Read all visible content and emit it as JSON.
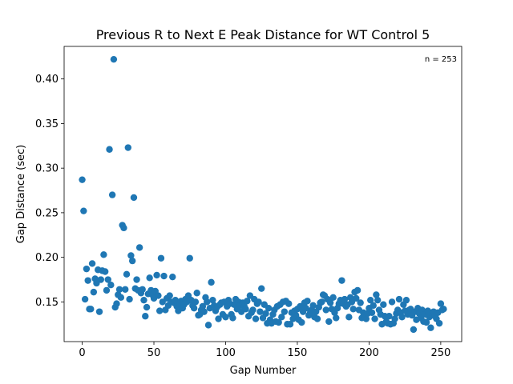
{
  "chart_data": {
    "type": "scatter",
    "title": "Previous R to Next E Peak Distance for WT Control 5",
    "xlabel": "Gap Number",
    "ylabel": "Gap Distance (sec)",
    "annotation": "n = 253",
    "annotation_position": "top-right",
    "xlim": [
      -12.6,
      264.6
    ],
    "ylim": [
      0.1055,
      0.4365
    ],
    "xticks": [
      0,
      50,
      100,
      150,
      200,
      250
    ],
    "yticks": [
      0.15,
      0.2,
      0.25,
      0.3,
      0.35,
      0.4
    ],
    "ytick_labels": [
      "0.15",
      "0.20",
      "0.25",
      "0.30",
      "0.35",
      "0.40"
    ],
    "grid": false,
    "marker_color": "#1f77b4",
    "points": [
      [
        0,
        0.287
      ],
      [
        1,
        0.252
      ],
      [
        2,
        0.153
      ],
      [
        3,
        0.187
      ],
      [
        4,
        0.174
      ],
      [
        5,
        0.142
      ],
      [
        6,
        0.142
      ],
      [
        7,
        0.193
      ],
      [
        8,
        0.161
      ],
      [
        9,
        0.176
      ],
      [
        10,
        0.171
      ],
      [
        11,
        0.186
      ],
      [
        12,
        0.139
      ],
      [
        13,
        0.175
      ],
      [
        14,
        0.185
      ],
      [
        15,
        0.203
      ],
      [
        16,
        0.184
      ],
      [
        17,
        0.163
      ],
      [
        18,
        0.175
      ],
      [
        19,
        0.321
      ],
      [
        20,
        0.169
      ],
      [
        21,
        0.27
      ],
      [
        22,
        0.422
      ],
      [
        23,
        0.144
      ],
      [
        24,
        0.148
      ],
      [
        25,
        0.158
      ],
      [
        26,
        0.164
      ],
      [
        27,
        0.155
      ],
      [
        28,
        0.236
      ],
      [
        29,
        0.233
      ],
      [
        30,
        0.164
      ],
      [
        31,
        0.181
      ],
      [
        32,
        0.323
      ],
      [
        33,
        0.153
      ],
      [
        34,
        0.202
      ],
      [
        35,
        0.196
      ],
      [
        36,
        0.267
      ],
      [
        37,
        0.165
      ],
      [
        38,
        0.175
      ],
      [
        39,
        0.163
      ],
      [
        40,
        0.211
      ],
      [
        41,
        0.16
      ],
      [
        42,
        0.164
      ],
      [
        43,
        0.152
      ],
      [
        44,
        0.134
      ],
      [
        45,
        0.144
      ],
      [
        46,
        0.159
      ],
      [
        47,
        0.177
      ],
      [
        48,
        0.163
      ],
      [
        49,
        0.158
      ],
      [
        50,
        0.154
      ],
      [
        51,
        0.162
      ],
      [
        52,
        0.18
      ],
      [
        53,
        0.157
      ],
      [
        54,
        0.14
      ],
      [
        55,
        0.199
      ],
      [
        56,
        0.15
      ],
      [
        57,
        0.179
      ],
      [
        58,
        0.141
      ],
      [
        59,
        0.154
      ],
      [
        60,
        0.146
      ],
      [
        61,
        0.157
      ],
      [
        62,
        0.15
      ],
      [
        63,
        0.178
      ],
      [
        64,
        0.149
      ],
      [
        65,
        0.152
      ],
      [
        66,
        0.145
      ],
      [
        67,
        0.14
      ],
      [
        68,
        0.148
      ],
      [
        69,
        0.151
      ],
      [
        70,
        0.143
      ],
      [
        71,
        0.147
      ],
      [
        72,
        0.153
      ],
      [
        73,
        0.15
      ],
      [
        74,
        0.157
      ],
      [
        75,
        0.199
      ],
      [
        76,
        0.152
      ],
      [
        77,
        0.146
      ],
      [
        78,
        0.143
      ],
      [
        79,
        0.15
      ],
      [
        80,
        0.16
      ],
      [
        81,
        0.135
      ],
      [
        82,
        0.136
      ],
      [
        83,
        0.141
      ],
      [
        84,
        0.145
      ],
      [
        85,
        0.139
      ],
      [
        86,
        0.155
      ],
      [
        87,
        0.15
      ],
      [
        88,
        0.124
      ],
      [
        89,
        0.143
      ],
      [
        90,
        0.172
      ],
      [
        91,
        0.152
      ],
      [
        92,
        0.146
      ],
      [
        93,
        0.14
      ],
      [
        94,
        0.144
      ],
      [
        95,
        0.131
      ],
      [
        96,
        0.147
      ],
      [
        97,
        0.149
      ],
      [
        98,
        0.136
      ],
      [
        99,
        0.15
      ],
      [
        100,
        0.133
      ],
      [
        101,
        0.145
      ],
      [
        102,
        0.152
      ],
      [
        103,
        0.148
      ],
      [
        104,
        0.136
      ],
      [
        105,
        0.132
      ],
      [
        106,
        0.147
      ],
      [
        107,
        0.153
      ],
      [
        108,
        0.142
      ],
      [
        109,
        0.15
      ],
      [
        110,
        0.146
      ],
      [
        111,
        0.139
      ],
      [
        112,
        0.149
      ],
      [
        113,
        0.145
      ],
      [
        114,
        0.142
      ],
      [
        115,
        0.151
      ],
      [
        116,
        0.134
      ],
      [
        117,
        0.157
      ],
      [
        118,
        0.138
      ],
      [
        119,
        0.141
      ],
      [
        120,
        0.153
      ],
      [
        121,
        0.131
      ],
      [
        122,
        0.148
      ],
      [
        123,
        0.15
      ],
      [
        124,
        0.139
      ],
      [
        125,
        0.165
      ],
      [
        126,
        0.132
      ],
      [
        127,
        0.147
      ],
      [
        128,
        0.137
      ],
      [
        129,
        0.126
      ],
      [
        130,
        0.143
      ],
      [
        131,
        0.13
      ],
      [
        132,
        0.126
      ],
      [
        133,
        0.136
      ],
      [
        134,
        0.141
      ],
      [
        135,
        0.128
      ],
      [
        136,
        0.145
      ],
      [
        137,
        0.127
      ],
      [
        138,
        0.147
      ],
      [
        139,
        0.133
      ],
      [
        140,
        0.15
      ],
      [
        141,
        0.139
      ],
      [
        142,
        0.151
      ],
      [
        143,
        0.125
      ],
      [
        144,
        0.148
      ],
      [
        145,
        0.125
      ],
      [
        146,
        0.138
      ],
      [
        147,
        0.131
      ],
      [
        148,
        0.14
      ],
      [
        149,
        0.135
      ],
      [
        150,
        0.142
      ],
      [
        151,
        0.13
      ],
      [
        152,
        0.145
      ],
      [
        153,
        0.127
      ],
      [
        154,
        0.139
      ],
      [
        155,
        0.149
      ],
      [
        156,
        0.143
      ],
      [
        157,
        0.151
      ],
      [
        158,
        0.135
      ],
      [
        159,
        0.138
      ],
      [
        160,
        0.141
      ],
      [
        161,
        0.146
      ],
      [
        162,
        0.133
      ],
      [
        163,
        0.139
      ],
      [
        164,
        0.131
      ],
      [
        165,
        0.144
      ],
      [
        166,
        0.149
      ],
      [
        167,
        0.15
      ],
      [
        168,
        0.158
      ],
      [
        169,
        0.157
      ],
      [
        170,
        0.141
      ],
      [
        171,
        0.153
      ],
      [
        172,
        0.128
      ],
      [
        173,
        0.149
      ],
      [
        174,
        0.142
      ],
      [
        175,
        0.155
      ],
      [
        176,
        0.138
      ],
      [
        177,
        0.132
      ],
      [
        178,
        0.143
      ],
      [
        179,
        0.148
      ],
      [
        180,
        0.152
      ],
      [
        181,
        0.174
      ],
      [
        182,
        0.148
      ],
      [
        183,
        0.153
      ],
      [
        184,
        0.145
      ],
      [
        185,
        0.147
      ],
      [
        186,
        0.133
      ],
      [
        187,
        0.155
      ],
      [
        188,
        0.15
      ],
      [
        189,
        0.142
      ],
      [
        190,
        0.161
      ],
      [
        191,
        0.154
      ],
      [
        192,
        0.163
      ],
      [
        193,
        0.141
      ],
      [
        194,
        0.149
      ],
      [
        195,
        0.132
      ],
      [
        196,
        0.138
      ],
      [
        197,
        0.135
      ],
      [
        198,
        0.131
      ],
      [
        199,
        0.137
      ],
      [
        200,
        0.143
      ],
      [
        201,
        0.152
      ],
      [
        202,
        0.138
      ],
      [
        203,
        0.146
      ],
      [
        204,
        0.131
      ],
      [
        205,
        0.158
      ],
      [
        206,
        0.152
      ],
      [
        207,
        0.141
      ],
      [
        208,
        0.136
      ],
      [
        209,
        0.125
      ],
      [
        210,
        0.147
      ],
      [
        211,
        0.134
      ],
      [
        212,
        0.128
      ],
      [
        213,
        0.126
      ],
      [
        214,
        0.134
      ],
      [
        215,
        0.125
      ],
      [
        216,
        0.15
      ],
      [
        217,
        0.126
      ],
      [
        218,
        0.131
      ],
      [
        219,
        0.137
      ],
      [
        220,
        0.141
      ],
      [
        221,
        0.153
      ],
      [
        222,
        0.138
      ],
      [
        223,
        0.133
      ],
      [
        224,
        0.147
      ],
      [
        225,
        0.14
      ],
      [
        226,
        0.152
      ],
      [
        227,
        0.136
      ],
      [
        228,
        0.141
      ],
      [
        229,
        0.142
      ],
      [
        230,
        0.135
      ],
      [
        231,
        0.119
      ],
      [
        232,
        0.139
      ],
      [
        233,
        0.13
      ],
      [
        234,
        0.143
      ],
      [
        235,
        0.137
      ],
      [
        236,
        0.132
      ],
      [
        237,
        0.141
      ],
      [
        238,
        0.128
      ],
      [
        239,
        0.136
      ],
      [
        240,
        0.127
      ],
      [
        241,
        0.14
      ],
      [
        242,
        0.133
      ],
      [
        243,
        0.121
      ],
      [
        244,
        0.137
      ],
      [
        245,
        0.139
      ],
      [
        246,
        0.134
      ],
      [
        247,
        0.131
      ],
      [
        248,
        0.138
      ],
      [
        249,
        0.126
      ],
      [
        250,
        0.148
      ],
      [
        251,
        0.141
      ],
      [
        252,
        0.142
      ]
    ]
  }
}
